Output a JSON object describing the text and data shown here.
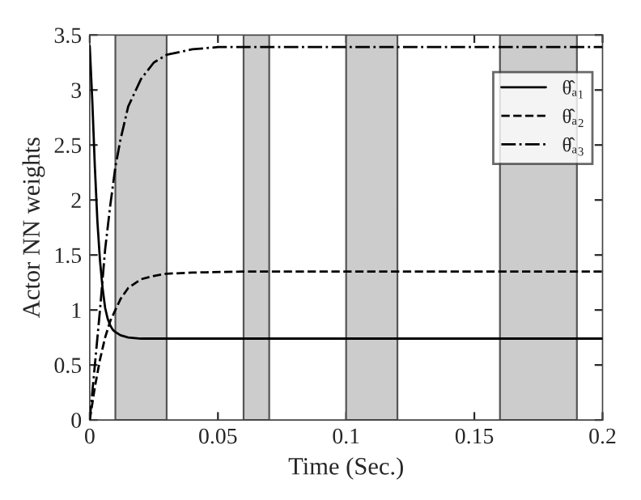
{
  "chart_data": {
    "type": "line",
    "xlabel": "Time (Sec.)",
    "ylabel": "Actor NN weights",
    "xlim": [
      0,
      0.2
    ],
    "ylim": [
      0,
      3.5
    ],
    "xticks": [
      0,
      0.05,
      0.1,
      0.15,
      0.2
    ],
    "yticks": [
      0,
      0.5,
      1,
      1.5,
      2,
      2.5,
      3,
      3.5
    ],
    "grid": false,
    "legend": "top right",
    "bands": [
      {
        "axis": "x",
        "from": 0.01,
        "to": 0.03,
        "color": "#cccccc"
      },
      {
        "axis": "x",
        "from": 0.06,
        "to": 0.07,
        "color": "#cccccc"
      },
      {
        "axis": "x",
        "from": 0.1,
        "to": 0.12,
        "color": "#cccccc"
      },
      {
        "axis": "x",
        "from": 0.16,
        "to": 0.19,
        "color": "#cccccc"
      }
    ],
    "series": [
      {
        "name": "θ̂ₐ₁",
        "color": "#000000",
        "line_style": "solid",
        "x": [
          0,
          0.001,
          0.002,
          0.003,
          0.004,
          0.005,
          0.006,
          0.007,
          0.008,
          0.009,
          0.01,
          0.012,
          0.015,
          0.02,
          0.05,
          0.2
        ],
        "values": [
          3.4,
          2.9,
          2.3,
          1.8,
          1.45,
          1.2,
          1.02,
          0.92,
          0.86,
          0.82,
          0.8,
          0.77,
          0.75,
          0.74,
          0.74,
          0.74
        ]
      },
      {
        "name": "θ̂ₐ₂",
        "color": "#000000",
        "line_style": "dashed",
        "x": [
          0,
          0.002,
          0.004,
          0.006,
          0.008,
          0.01,
          0.012,
          0.015,
          0.02,
          0.025,
          0.03,
          0.04,
          0.06,
          0.2
        ],
        "values": [
          0,
          0.3,
          0.55,
          0.75,
          0.9,
          1.0,
          1.1,
          1.2,
          1.28,
          1.31,
          1.33,
          1.34,
          1.35,
          1.35
        ]
      },
      {
        "name": "θ̂ₐ₃",
        "color": "#000000",
        "line_style": "dashdot",
        "x": [
          0,
          0.002,
          0.004,
          0.006,
          0.008,
          0.01,
          0.012,
          0.015,
          0.02,
          0.025,
          0.03,
          0.04,
          0.05,
          0.2
        ],
        "values": [
          0,
          0.5,
          1.0,
          1.55,
          1.95,
          2.3,
          2.55,
          2.85,
          3.1,
          3.25,
          3.32,
          3.37,
          3.39,
          3.39
        ]
      }
    ]
  }
}
